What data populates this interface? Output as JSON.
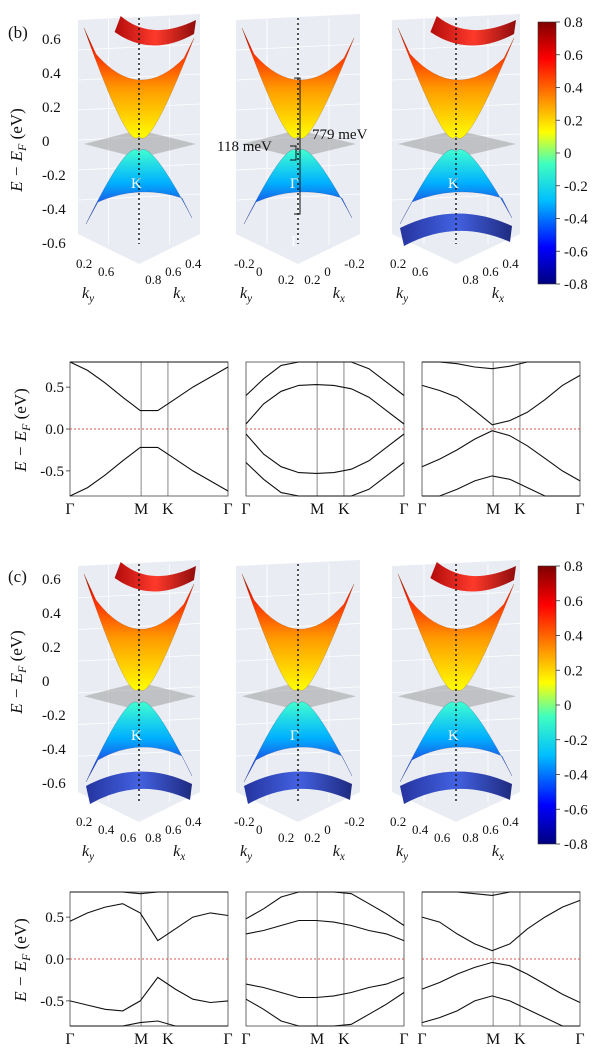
{
  "figure": {
    "panel_b_label": "(b)",
    "panel_c_label": "(c)",
    "energy_axis_label": "E − E",
    "energy_axis_sub": "F",
    "energy_axis_unit": " (eV)",
    "ky_label": "k",
    "ky_sub": "y",
    "kx_label": "k",
    "kx_sub": "x",
    "annotation_gap_small": "118 meV",
    "annotation_gap_large": "779 meV",
    "kpoint_K": "K",
    "kpoint_Gamma": "Γ",
    "colors": {
      "colorbar_stops": [
        "#00007f",
        "#0000ff",
        "#00bfff",
        "#40ffbf",
        "#ffff00",
        "#ff8000",
        "#ff0000",
        "#7f0000"
      ],
      "fermi_line": "#d9534f",
      "band_line": "#111111",
      "plane_gray": "#9e9e9e",
      "plot_bg": "#e9ecf2"
    }
  },
  "chart_data": [
    {
      "type": "surface3d",
      "panel": "b",
      "position": "left",
      "zlim": [
        -0.7,
        0.7
      ],
      "zticks": [
        "0.6",
        "0.4",
        "0.2",
        "0",
        "-0.2",
        "-0.4",
        "-0.6"
      ],
      "ky_ticks": [
        "0.2",
        "0.6"
      ],
      "kx_ticks": [
        "0.8",
        "0.6",
        "0.4"
      ],
      "point_label": "K"
    },
    {
      "type": "surface3d",
      "panel": "b",
      "position": "center",
      "zlim": [
        -0.7,
        0.7
      ],
      "ky_ticks": [
        "-0.2",
        "0",
        "0.2"
      ],
      "kx_ticks": [
        "0.2",
        "0",
        "-0.2"
      ],
      "point_label": "Γ",
      "annotations": [
        "118 meV",
        "779 meV"
      ]
    },
    {
      "type": "surface3d",
      "panel": "b",
      "position": "right",
      "zlim": [
        -0.7,
        0.7
      ],
      "ky_ticks": [
        "0.2",
        "0.6"
      ],
      "kx_ticks": [
        "0.8",
        "0.6",
        "0.4"
      ],
      "point_label": "K"
    },
    {
      "type": "colorbar",
      "panel": "b",
      "range": [
        -0.8,
        0.8
      ],
      "ticks": [
        "0.8",
        "0.6",
        "0.4",
        "0.2",
        "0",
        "-0.2",
        "-0.4",
        "-0.6",
        "-0.8"
      ]
    },
    {
      "type": "line",
      "panel": "b",
      "index": 0,
      "x_ticks": [
        "Γ",
        "M",
        "K",
        "Γ"
      ],
      "ylim": [
        -0.8,
        0.8
      ],
      "y_ticks": [
        "0.5",
        "0.0",
        "-0.5"
      ],
      "fermi_level": 0.0,
      "bands": [
        [
          0.82,
          0.7,
          0.55,
          0.38,
          0.22,
          0.22,
          0.36,
          0.5,
          0.62,
          0.74
        ],
        [
          -0.82,
          -0.7,
          -0.55,
          -0.38,
          -0.22,
          -0.22,
          -0.36,
          -0.5,
          -0.62,
          -0.74
        ],
        [
          0.84,
          0.84,
          0.84,
          0.84,
          0.84,
          0.84,
          0.84,
          0.84,
          0.84,
          0.84
        ]
      ]
    },
    {
      "type": "line",
      "panel": "b",
      "index": 1,
      "x_ticks": [
        "Γ",
        "M",
        "K",
        "Γ"
      ],
      "ylim": [
        -0.8,
        0.8
      ],
      "y_ticks": [
        "0.5",
        "0.0",
        "-0.5"
      ],
      "fermi_level": 0.0,
      "bands": [
        [
          0.06,
          0.3,
          0.45,
          0.52,
          0.53,
          0.52,
          0.48,
          0.38,
          0.22,
          0.06
        ],
        [
          -0.06,
          -0.3,
          -0.45,
          -0.52,
          -0.53,
          -0.52,
          -0.48,
          -0.38,
          -0.22,
          -0.06
        ],
        [
          0.4,
          0.6,
          0.76,
          0.86,
          0.9,
          0.88,
          0.82,
          0.72,
          0.56,
          0.4
        ],
        [
          -0.4,
          -0.6,
          -0.76,
          -0.86,
          -0.9,
          -0.88,
          -0.82,
          -0.72,
          -0.56,
          -0.4
        ]
      ]
    },
    {
      "type": "line",
      "panel": "b",
      "index": 2,
      "x_ticks": [
        "Γ",
        "M",
        "K",
        "Γ"
      ],
      "ylim": [
        -0.8,
        0.8
      ],
      "y_ticks": [
        "0.5",
        "0.0",
        "-0.5"
      ],
      "fermi_level": 0.0,
      "bands": [
        [
          0.52,
          0.46,
          0.38,
          0.22,
          0.05,
          0.1,
          0.2,
          0.35,
          0.52,
          0.64
        ],
        [
          -0.45,
          -0.36,
          -0.25,
          -0.12,
          -0.02,
          -0.08,
          -0.2,
          -0.35,
          -0.5,
          -0.62
        ],
        [
          0.82,
          0.8,
          0.78,
          0.74,
          0.72,
          0.75,
          0.8,
          0.84,
          0.86,
          0.86
        ],
        [
          -0.88,
          -0.8,
          -0.72,
          -0.62,
          -0.56,
          -0.6,
          -0.7,
          -0.82,
          -0.92,
          -0.95
        ]
      ]
    },
    {
      "type": "surface3d",
      "panel": "c",
      "position": "left",
      "zlim": [
        -0.7,
        0.7
      ],
      "zticks": [
        "0.6",
        "0.4",
        "0.2",
        "0",
        "-0.2",
        "-0.4",
        "-0.6"
      ],
      "ky_ticks": [
        "0.2",
        "0.4",
        "0.6"
      ],
      "kx_ticks": [
        "0.8",
        "0.6",
        "0.4"
      ],
      "point_label": "K"
    },
    {
      "type": "surface3d",
      "panel": "c",
      "position": "center",
      "zlim": [
        -0.7,
        0.7
      ],
      "ky_ticks": [
        "-0.2",
        "0",
        "0.2"
      ],
      "kx_ticks": [
        "0.2",
        "0",
        "-0.2"
      ],
      "point_label": "Γ"
    },
    {
      "type": "surface3d",
      "panel": "c",
      "position": "right",
      "zlim": [
        -0.7,
        0.7
      ],
      "ky_ticks": [
        "0.2",
        "0.4",
        "0.6"
      ],
      "kx_ticks": [
        "0.8",
        "0.6",
        "0.4"
      ],
      "point_label": "K"
    },
    {
      "type": "colorbar",
      "panel": "c",
      "range": [
        -0.8,
        0.8
      ],
      "ticks": [
        "0.8",
        "0.6",
        "0.4",
        "0.2",
        "0",
        "-0.2",
        "-0.4",
        "-0.6",
        "-0.8"
      ]
    },
    {
      "type": "line",
      "panel": "c",
      "index": 0,
      "x_ticks": [
        "Γ",
        "M",
        "K",
        "Γ"
      ],
      "ylim": [
        -0.8,
        0.8
      ],
      "y_ticks": [
        "0.5",
        "0.0",
        "-0.5"
      ],
      "fermi_level": 0.0,
      "bands": [
        [
          0.45,
          0.55,
          0.62,
          0.66,
          0.55,
          0.22,
          0.36,
          0.5,
          0.55,
          0.52
        ],
        [
          -0.5,
          -0.55,
          -0.6,
          -0.62,
          -0.5,
          -0.22,
          -0.36,
          -0.48,
          -0.52,
          -0.5
        ],
        [
          0.84,
          0.86,
          0.86,
          0.85,
          0.78,
          0.8,
          0.86,
          0.86,
          0.85,
          0.84
        ],
        [
          -0.84,
          -0.86,
          -0.86,
          -0.85,
          -0.76,
          -0.74,
          -0.82,
          -0.86,
          -0.85,
          -0.84
        ]
      ]
    },
    {
      "type": "line",
      "panel": "c",
      "index": 1,
      "x_ticks": [
        "Γ",
        "M",
        "K",
        "Γ"
      ],
      "ylim": [
        -0.8,
        0.8
      ],
      "y_ticks": [
        "0.5",
        "0.0",
        "-0.5"
      ],
      "fermi_level": 0.0,
      "bands": [
        [
          0.3,
          0.34,
          0.4,
          0.46,
          0.46,
          0.44,
          0.4,
          0.34,
          0.3,
          0.22
        ],
        [
          -0.3,
          -0.34,
          -0.4,
          -0.46,
          -0.46,
          -0.44,
          -0.4,
          -0.34,
          -0.3,
          -0.22
        ],
        [
          0.48,
          0.6,
          0.74,
          0.84,
          0.88,
          0.86,
          0.78,
          0.66,
          0.54,
          0.4
        ],
        [
          -0.48,
          -0.6,
          -0.74,
          -0.84,
          -0.88,
          -0.86,
          -0.78,
          -0.66,
          -0.54,
          -0.4
        ]
      ]
    },
    {
      "type": "line",
      "panel": "c",
      "index": 2,
      "x_ticks": [
        "Γ",
        "M",
        "K",
        "Γ"
      ],
      "ylim": [
        -0.8,
        0.8
      ],
      "y_ticks": [
        "0.5",
        "0.0",
        "-0.5"
      ],
      "fermi_level": 0.0,
      "bands": [
        [
          0.5,
          0.44,
          0.3,
          0.18,
          0.1,
          0.18,
          0.36,
          0.5,
          0.62,
          0.7
        ],
        [
          -0.36,
          -0.28,
          -0.18,
          -0.1,
          -0.04,
          -0.08,
          -0.18,
          -0.3,
          -0.42,
          -0.52
        ],
        [
          0.84,
          0.82,
          0.8,
          0.78,
          0.76,
          0.8,
          0.84,
          0.86,
          0.86,
          0.86
        ],
        [
          -0.76,
          -0.7,
          -0.62,
          -0.5,
          -0.44,
          -0.5,
          -0.6,
          -0.7,
          -0.8,
          -0.86
        ]
      ]
    }
  ]
}
